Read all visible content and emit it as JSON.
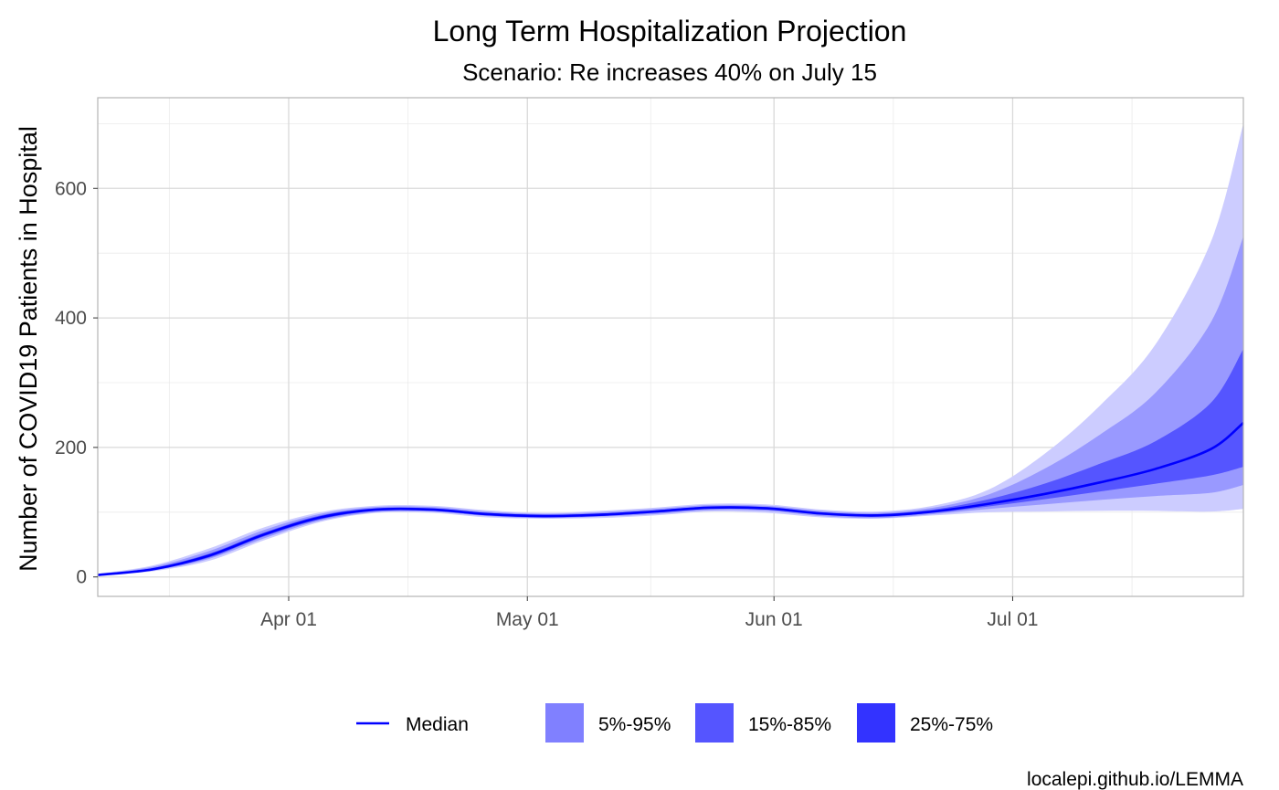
{
  "chart_data": {
    "type": "area",
    "title": "Long Term Hospitalization Projection",
    "subtitle": "Scenario: Re increases 40% on July 15",
    "xlabel": "",
    "ylabel": "Number of COVID19 Patients in Hospital",
    "caption": "localepi.github.io/LEMMA",
    "x_ticks": [
      {
        "date": "2020-04-01",
        "label": "Apr 01"
      },
      {
        "date": "2020-05-01",
        "label": "May 01"
      },
      {
        "date": "2020-06-01",
        "label": "Jun 01"
      },
      {
        "date": "2020-07-01",
        "label": "Jul 01"
      }
    ],
    "y_ticks": [
      0,
      200,
      400,
      600
    ],
    "xlim": [
      "2020-03-08",
      "2020-07-30"
    ],
    "ylim": [
      -30,
      740
    ],
    "grid": true,
    "legend_position": "bottom",
    "colors": {
      "median": "#0000FF",
      "band_5_95": "#CCCCFF",
      "band_15_85": "#9999FF",
      "band_25_75": "#5555FF",
      "legend_5_95": "#8080FF",
      "legend_15_85": "#5555FF",
      "legend_25_75": "#3333FF"
    },
    "legend": [
      {
        "key": "median",
        "label": "Median"
      },
      {
        "key": "band_5_95",
        "label": "5%-95%"
      },
      {
        "key": "band_15_85",
        "label": "15%-85%"
      },
      {
        "key": "band_25_75",
        "label": "25%-75%"
      }
    ],
    "x": [
      "2020-03-08",
      "2020-03-15",
      "2020-03-22",
      "2020-03-29",
      "2020-04-05",
      "2020-04-12",
      "2020-04-19",
      "2020-04-26",
      "2020-05-03",
      "2020-05-10",
      "2020-05-17",
      "2020-05-24",
      "2020-05-31",
      "2020-06-07",
      "2020-06-14",
      "2020-06-21",
      "2020-06-28",
      "2020-07-05",
      "2020-07-12",
      "2020-07-19",
      "2020-07-26",
      "2020-07-30"
    ],
    "series": [
      {
        "name": "Median",
        "values": [
          3,
          12,
          33,
          66,
          92,
          104,
          104,
          97,
          94,
          96,
          101,
          107,
          106,
          98,
          95,
          101,
          113,
          128,
          146,
          167,
          198,
          238
        ]
      },
      {
        "name": "5%-95%",
        "lower": [
          2,
          9,
          25,
          57,
          85,
          99,
          99,
          92,
          90,
          91,
          95,
          101,
          99,
          92,
          90,
          95,
          100,
          101,
          102,
          102,
          101,
          105
        ],
        "upper": [
          5,
          18,
          44,
          77,
          100,
          110,
          110,
          103,
          99,
          102,
          107,
          113,
          112,
          104,
          101,
          110,
          135,
          190,
          265,
          360,
          520,
          700
        ]
      },
      {
        "name": "15%-85%",
        "lower": [
          2,
          10,
          28,
          60,
          87,
          100,
          101,
          94,
          91,
          93,
          97,
          103,
          102,
          94,
          91,
          97,
          105,
          112,
          119,
          125,
          130,
          142
        ]
      },
      {
        "name": "25%-75%",
        "lower": [
          3,
          11,
          30,
          63,
          89,
          102,
          102,
          95,
          92,
          94,
          99,
          105,
          104,
          96,
          93,
          99,
          109,
          120,
          132,
          144,
          157,
          170
        ],
        "upper": [
          4,
          14,
          36,
          69,
          95,
          106,
          106,
          99,
          96,
          98,
          103,
          109,
          108,
          100,
          97,
          104,
          120,
          144,
          175,
          210,
          270,
          352
        ]
      }
    ]
  }
}
